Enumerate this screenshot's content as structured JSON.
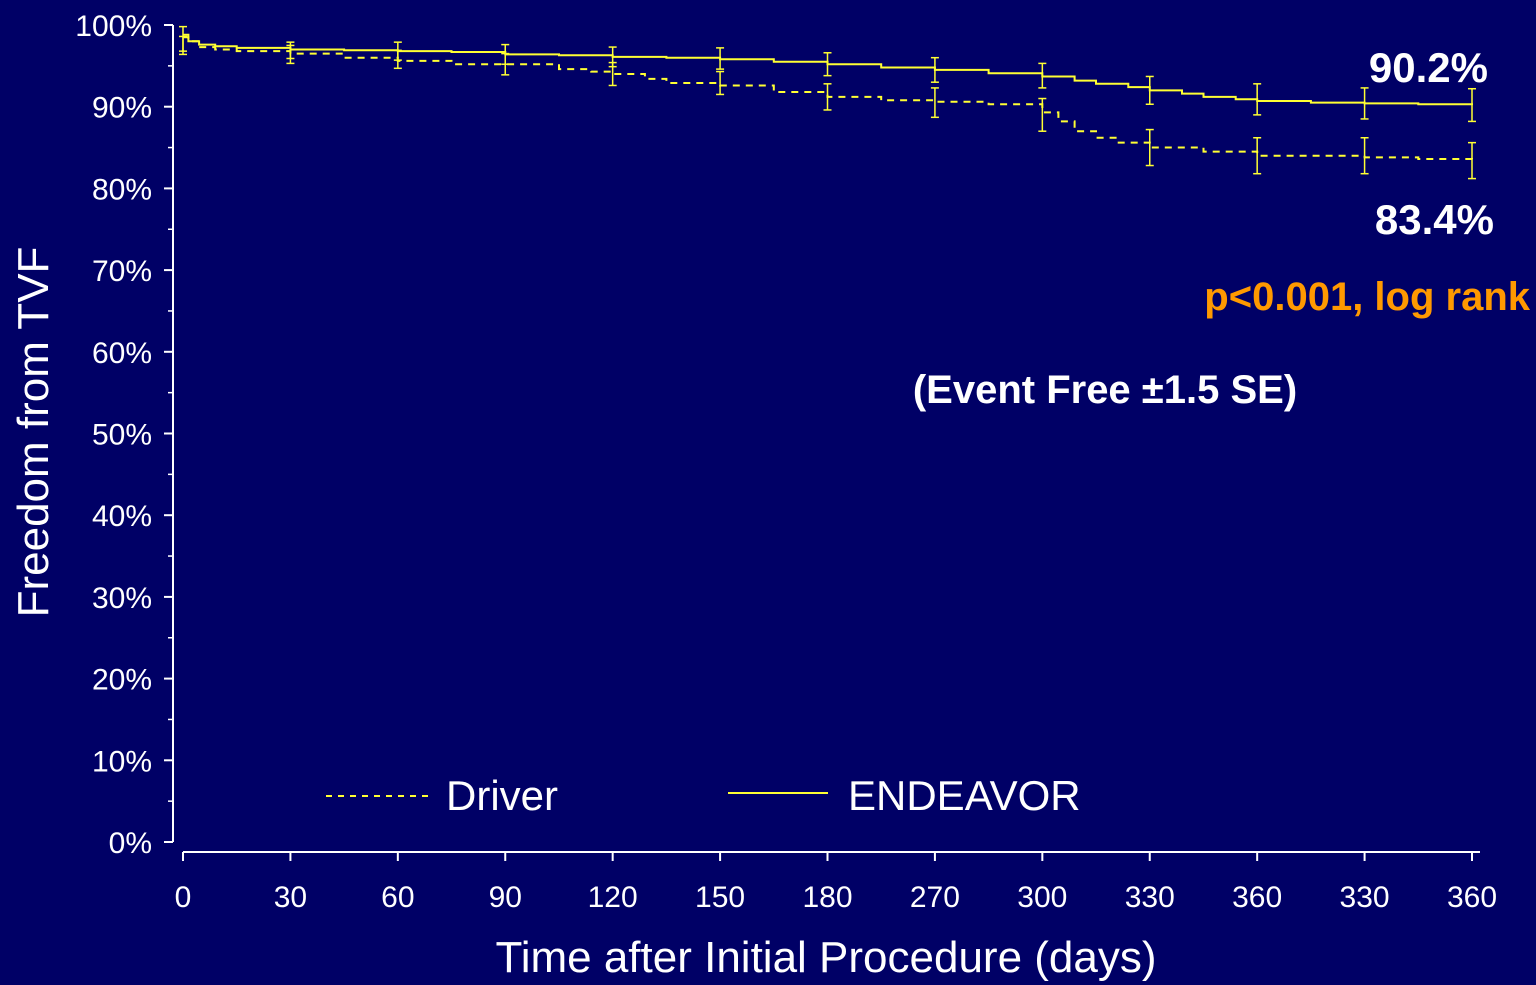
{
  "colors": {
    "background": "#000066",
    "curve": "#ffff33",
    "axis": "#ffffff",
    "pvalue": "#ff9900"
  },
  "chart_data": {
    "type": "line",
    "xlabel": "Time after Initial Procedure (days)",
    "ylabel": "Freedom from TVF",
    "x_tick_labels": [
      "0",
      "30",
      "60",
      "90",
      "120",
      "150",
      "180",
      "270",
      "300",
      "330",
      "360",
      "330",
      "360"
    ],
    "y_ticks": [
      0,
      10,
      20,
      30,
      40,
      50,
      60,
      70,
      80,
      90,
      100
    ],
    "y_tick_labels": [
      "0%",
      "10%",
      "20%",
      "30%",
      "40%",
      "50%",
      "60%",
      "70%",
      "80%",
      "90%",
      "100%"
    ],
    "ylim": [
      0,
      100
    ],
    "grid": false,
    "legend_position": "bottom-left",
    "series": [
      {
        "name": "Driver",
        "style": "dashed",
        "x_index": [
          0,
          0.05,
          0.15,
          0.3,
          0.5,
          1,
          1.5,
          2,
          2.5,
          3,
          3.5,
          3.8,
          4,
          4.3,
          4.5,
          5,
          5.5,
          6,
          6.5,
          7,
          7.5,
          8,
          8.15,
          8.3,
          8.5,
          8.7,
          9,
          9.5,
          10,
          10.5,
          11,
          11.5,
          12
        ],
        "values": [
          98.5,
          98.0,
          97.3,
          97.0,
          96.8,
          96.5,
          96.0,
          95.6,
          95.2,
          95.2,
          94.6,
          94.3,
          94.0,
          93.4,
          92.9,
          92.6,
          91.8,
          91.2,
          90.8,
          90.6,
          90.3,
          89.3,
          88.2,
          87.0,
          86.2,
          85.6,
          85.0,
          84.5,
          84.0,
          84.0,
          83.8,
          83.6,
          83.4
        ],
        "error_x_index": [
          0,
          1,
          2,
          3,
          4,
          5,
          6,
          7,
          8,
          9,
          10,
          11,
          12
        ],
        "error_values": [
          97.5,
          96.4,
          95.8,
          95.2,
          94.0,
          92.9,
          91.2,
          90.5,
          89.0,
          85.0,
          84.0,
          84.0,
          83.4
        ],
        "error_half": [
          1.1,
          1.1,
          1.1,
          1.3,
          1.4,
          1.4,
          1.6,
          1.8,
          2.0,
          2.2,
          2.2,
          2.2,
          2.2
        ]
      },
      {
        "name": "ENDEAVOR",
        "style": "solid",
        "x_index": [
          0,
          0.05,
          0.15,
          0.3,
          0.5,
          1,
          1.5,
          2,
          2.5,
          3,
          3.5,
          4,
          4.5,
          5,
          5.5,
          6,
          6.5,
          7,
          7.5,
          8,
          8.3,
          8.5,
          8.8,
          9,
          9.3,
          9.5,
          9.8,
          10,
          10.5,
          11,
          11.5,
          12
        ],
        "values": [
          98.8,
          98.0,
          97.6,
          97.4,
          97.2,
          97.0,
          96.9,
          96.8,
          96.7,
          96.4,
          96.3,
          96.1,
          96.0,
          95.8,
          95.5,
          95.2,
          94.8,
          94.5,
          94.1,
          93.7,
          93.2,
          92.8,
          92.4,
          92.0,
          91.6,
          91.2,
          90.9,
          90.7,
          90.5,
          90.4,
          90.3,
          90.2
        ],
        "error_x_index": [
          0,
          1,
          2,
          3,
          4,
          5,
          6,
          7,
          8,
          9,
          10,
          11,
          12
        ],
        "error_values": [
          98.3,
          96.9,
          96.8,
          96.4,
          96.1,
          95.9,
          95.2,
          94.5,
          93.8,
          92.0,
          90.9,
          90.4,
          90.2
        ],
        "error_half": [
          1.5,
          1.0,
          1.1,
          1.2,
          1.2,
          1.3,
          1.4,
          1.5,
          1.5,
          1.7,
          1.9,
          1.9,
          2.0
        ]
      }
    ],
    "annotations": {
      "endeavor_final": "90.2%",
      "driver_final": "83.4%",
      "pvalue": "p<0.001, log rank",
      "event_free": "(Event Free ±1.5 SE)"
    }
  }
}
